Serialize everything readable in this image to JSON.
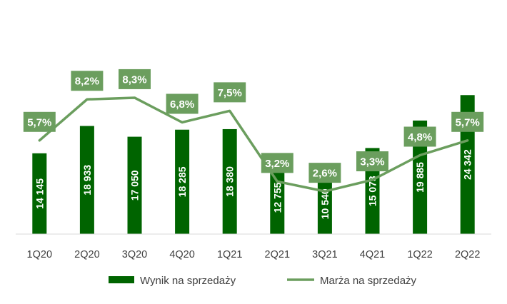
{
  "chart_data": {
    "type": "bar+line",
    "categories": [
      "1Q20",
      "2Q20",
      "3Q20",
      "4Q20",
      "1Q21",
      "2Q21",
      "3Q21",
      "4Q21",
      "1Q22",
      "2Q22"
    ],
    "series": [
      {
        "name": "Wynik na sprzedaży",
        "type": "bar",
        "values": [
          14145,
          18933,
          17050,
          18285,
          18380,
          12755,
          10540,
          15073,
          19885,
          24342
        ],
        "value_labels": [
          "14 145",
          "18 933",
          "17 050",
          "18 285",
          "18 380",
          "12 755",
          "10 540",
          "15 073",
          "19 885",
          "24 342"
        ]
      },
      {
        "name": "Marża na sprzedaży",
        "type": "line",
        "values": [
          5.7,
          8.2,
          8.3,
          6.8,
          7.5,
          3.2,
          2.6,
          3.3,
          4.8,
          5.7
        ],
        "value_labels": [
          "5,7%",
          "8,2%",
          "8,3%",
          "6,8%",
          "7,5%",
          "3,2%",
          "2,6%",
          "3,3%",
          "4,8%",
          "5,7%"
        ]
      }
    ],
    "bar_axis_range": [
      0,
      30000
    ],
    "line_axis_range": [
      0,
      13
    ],
    "axes_visible": false,
    "grid": false,
    "legend_position": "bottom",
    "colors": {
      "bar": "#006400",
      "line": "#6b9e5e",
      "label_box": "#6b9e5e",
      "label_text": "#ffffff",
      "axis": "#d9d9d9",
      "tick_text": "#404040"
    }
  }
}
